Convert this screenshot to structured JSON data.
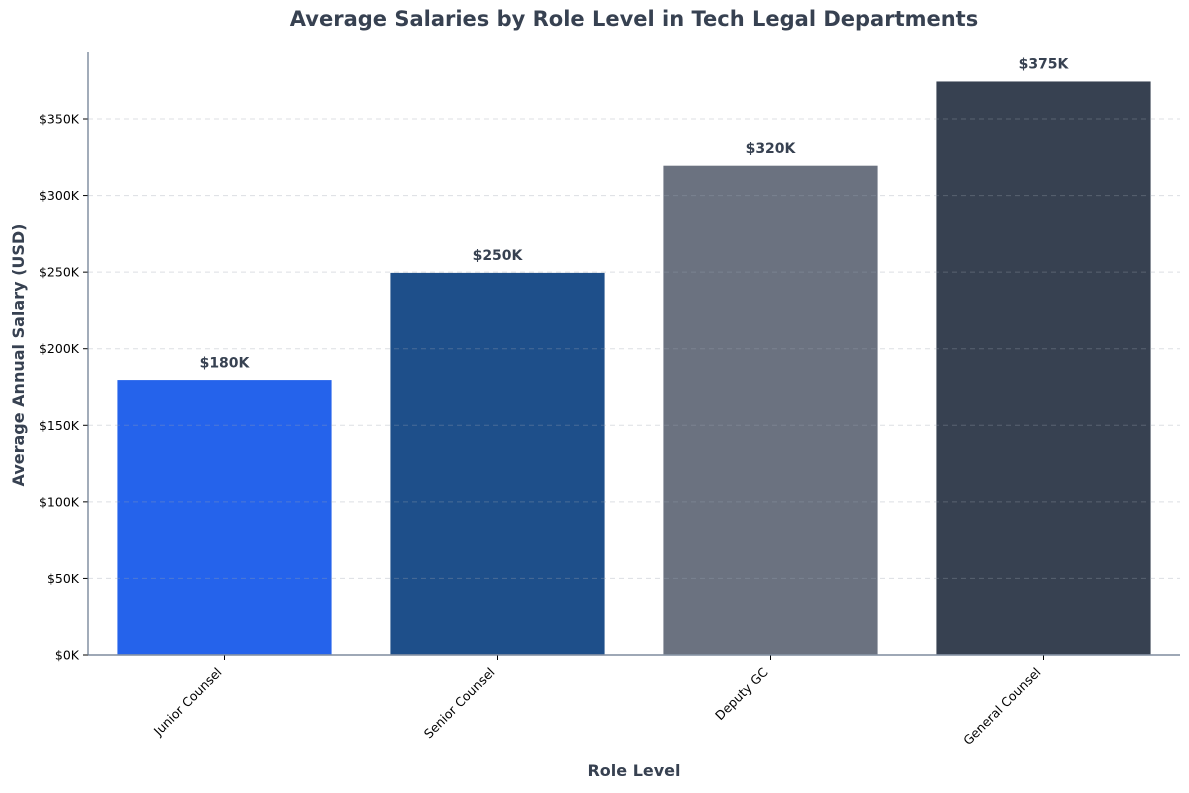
{
  "chart_data": {
    "type": "bar",
    "title": "Average Salaries by Role Level in Tech Legal Departments",
    "xlabel": "Role Level",
    "ylabel": "Average Annual Salary (USD)",
    "categories": [
      "Junior Counsel",
      "Senior Counsel",
      "Deputy GC",
      "General Counsel"
    ],
    "values": [
      180000,
      250000,
      320000,
      375000
    ],
    "data_labels": [
      "$180K",
      "$250K",
      "$320K",
      "$375K"
    ],
    "colors": [
      "#2563eb",
      "#1e4f8a",
      "#6b7280",
      "#374151"
    ],
    "ylim": [
      0,
      393750
    ],
    "yticks": [
      0,
      50000,
      100000,
      150000,
      200000,
      250000,
      300000,
      350000
    ],
    "ytick_labels": [
      "$0K",
      "$50K",
      "$100K",
      "$150K",
      "$200K",
      "$250K",
      "$300K",
      "$350K"
    ],
    "grid": "y-dashed",
    "text_color": "#374151"
  }
}
